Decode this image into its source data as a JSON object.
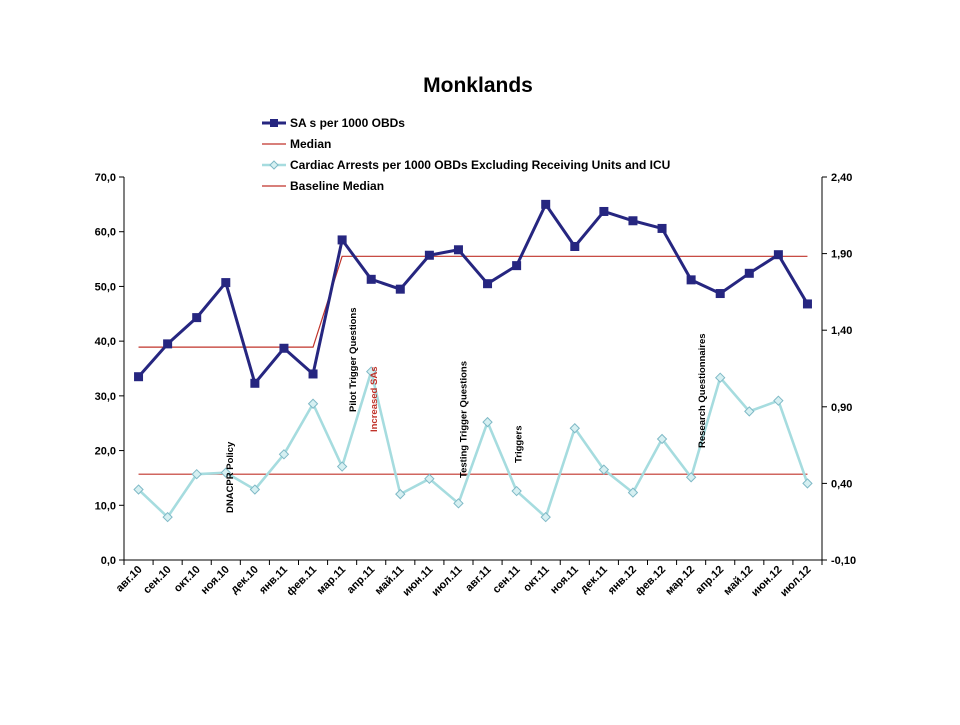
{
  "chart_data": {
    "type": "line",
    "title": "Monklands",
    "categories": [
      "авг.10",
      "сен.10",
      "окт.10",
      "ноя.10",
      "дек.10",
      "янв.11",
      "фев.11",
      "мар.11",
      "апр.11",
      "май.11",
      "июн.11",
      "июл.11",
      "авг.11",
      "сен.11",
      "окт.11",
      "ноя.11",
      "дек.11",
      "янв.12",
      "фев.12",
      "мар.12",
      "апр.12",
      "май.12",
      "июн.12",
      "июл.12"
    ],
    "y_left": {
      "min": 0,
      "max": 70,
      "ticks": [
        "0,0",
        "10,0",
        "20,0",
        "30,0",
        "40,0",
        "50,0",
        "60,0",
        "70,0"
      ]
    },
    "y_right": {
      "min": -0.1,
      "max": 2.4,
      "ticks": [
        "-0,10",
        "0,40",
        "0,90",
        "1,40",
        "1,90",
        "2,40"
      ]
    },
    "gridlines": false,
    "legend_position": "top",
    "series": [
      {
        "name": "SA s per 1000 OBDs",
        "axis": "left",
        "color": "#262680",
        "marker": "square",
        "values": [
          33.5,
          39.5,
          44.3,
          50.7,
          32.3,
          38.7,
          34.0,
          58.5,
          51.3,
          49.5,
          55.7,
          56.7,
          50.5,
          53.8,
          65.0,
          57.3,
          63.7,
          62.0,
          60.6,
          51.2,
          48.7,
          52.4,
          55.8,
          46.8
        ]
      },
      {
        "name": "Median",
        "axis": "left",
        "color": "#c0332a",
        "marker": "none",
        "values": [
          38.9,
          38.9,
          38.9,
          38.9,
          38.9,
          38.9,
          38.9,
          55.5,
          55.5,
          55.5,
          55.5,
          55.5,
          55.5,
          55.5,
          55.5,
          55.5,
          55.5,
          55.5,
          55.5,
          55.5,
          55.5,
          55.5,
          55.5,
          55.5
        ]
      },
      {
        "name": "Cardiac Arrests per 1000 OBDs Excluding Receiving Units and ICU",
        "axis": "right",
        "color": "#a6dcdf",
        "marker": "diamond",
        "values": [
          0.36,
          0.18,
          0.46,
          0.47,
          0.36,
          0.59,
          0.92,
          0.51,
          1.13,
          0.33,
          0.43,
          0.27,
          0.8,
          0.35,
          0.18,
          0.76,
          0.49,
          0.34,
          0.69,
          0.44,
          1.09,
          0.87,
          0.94,
          0.4
        ]
      },
      {
        "name": "Baseline Median",
        "axis": "right",
        "color": "#c0332a",
        "marker": "none",
        "values": [
          0.46,
          0.46,
          0.46,
          0.46,
          0.46,
          0.46,
          0.46,
          0.46,
          0.46,
          0.46,
          0.46,
          0.46,
          0.46,
          0.46,
          0.46,
          0.46,
          0.46,
          0.46,
          0.46,
          0.46,
          0.46,
          0.46,
          0.46,
          0.46
        ]
      }
    ],
    "annotations": [
      {
        "text": "DNACPR Policy",
        "category_index": 3,
        "color": "#000000"
      },
      {
        "text": "Pilot Trigger Questions",
        "category_index": 7,
        "color": "#000000"
      },
      {
        "text": "Increased SAs",
        "category_index": 8,
        "color": "#c0332a"
      },
      {
        "text": "Testing Trigger Questions",
        "category_index": 11,
        "color": "#000000"
      },
      {
        "text": "Triggers",
        "category_index": 13,
        "color": "#000000"
      },
      {
        "text": "Research Questionnaires",
        "category_index": 19,
        "color": "#000000"
      }
    ]
  }
}
